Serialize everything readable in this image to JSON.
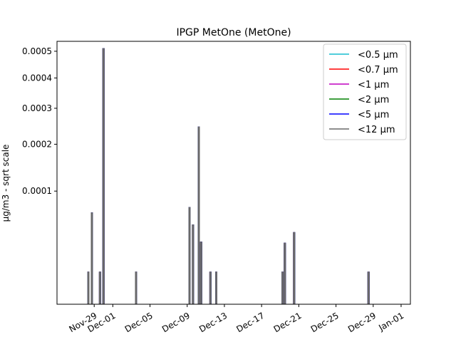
{
  "chart_data": {
    "type": "line",
    "title": "IPGP MetOne (MetOne)",
    "ylabel": "µg/m3 - sqrt scale",
    "xlabel": "",
    "y_scale": "sqrt",
    "ylim": [
      0,
      0.00054
    ],
    "y_ticks": [
      0.0001,
      0.0002,
      0.0003,
      0.0004,
      0.0005
    ],
    "y_tick_labels": [
      "0.0001",
      "0.0002",
      "0.0003",
      "0.0004",
      "0.0005"
    ],
    "x_range": [
      "2024-11-25",
      "2025-01-02"
    ],
    "x_ticks": [
      "2024-11-29",
      "2024-12-01",
      "2024-12-05",
      "2024-12-09",
      "2024-12-13",
      "2024-12-17",
      "2024-12-21",
      "2024-12-25",
      "2024-12-29",
      "2025-01-01"
    ],
    "x_tick_labels": [
      "Nov-29",
      "Dec-01",
      "Dec-05",
      "Dec-09",
      "Dec-13",
      "Dec-17",
      "Dec-21",
      "Dec-25",
      "Dec-29",
      "Jan-01"
    ],
    "legend_position": "top-right",
    "series": [
      {
        "name": "<0.5 µm",
        "color": "#17becf"
      },
      {
        "name": "<0.7 µm",
        "color": "#ff0000"
      },
      {
        "name": "<1 µm",
        "color": "#bf00bf"
      },
      {
        "name": "<2 µm",
        "color": "#008000"
      },
      {
        "name": "<5 µm",
        "color": "#0000ff"
      },
      {
        "name": "<12 µm",
        "color": "#696969"
      }
    ],
    "spikes": [
      {
        "date": "2024-11-28T09:00",
        "value": 8e-06
      },
      {
        "date": "2024-11-28T18:00",
        "value": 6.5e-05
      },
      {
        "date": "2024-11-29T15:00",
        "value": 8e-06
      },
      {
        "date": "2024-11-30T00:00",
        "value": 0.00051
      },
      {
        "date": "2024-12-03T12:00",
        "value": 8e-06
      },
      {
        "date": "2024-12-09T06:00",
        "value": 7.3e-05
      },
      {
        "date": "2024-12-09T15:00",
        "value": 4.9e-05
      },
      {
        "date": "2024-12-10T06:00",
        "value": 0.000245
      },
      {
        "date": "2024-12-10T12:00",
        "value": 3e-05
      },
      {
        "date": "2024-12-11T12:00",
        "value": 8e-06
      },
      {
        "date": "2024-12-12T03:00",
        "value": 8e-06
      },
      {
        "date": "2024-12-19T06:00",
        "value": 8e-06
      },
      {
        "date": "2024-12-19T12:00",
        "value": 2.9e-05
      },
      {
        "date": "2024-12-20T12:00",
        "value": 4e-05
      },
      {
        "date": "2024-12-28T12:00",
        "value": 8e-06
      }
    ]
  }
}
